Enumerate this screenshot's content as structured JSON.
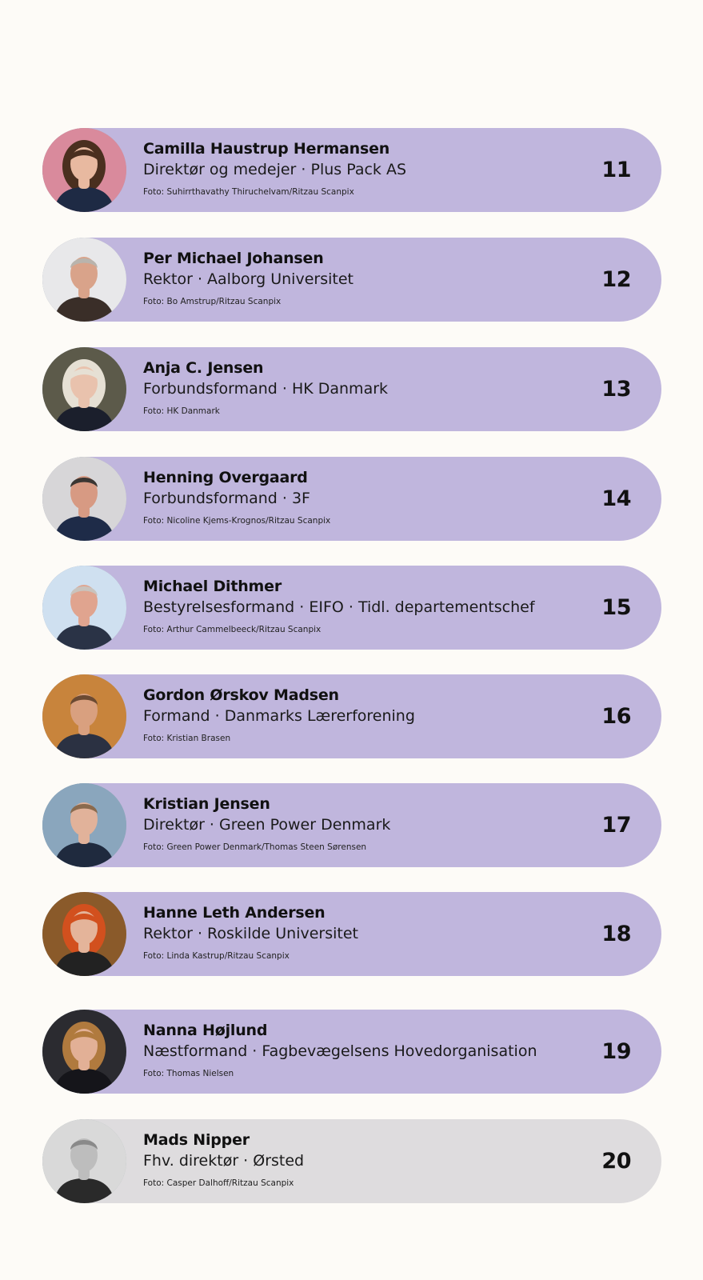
{
  "people": [
    {
      "rank": "11",
      "name": "Camilla Haustrup Hermansen",
      "role": "Direktør og medejer · Plus Pack AS",
      "credit": "Foto: Suhirrthavathy Thiruchelvam/Ritzau Scanpix",
      "avatar": "portrait-woman-icon",
      "photo_bg": "#d98a9c",
      "skin": "#e8b9a0",
      "hair": "#4a2f1f",
      "cloth": "#1e2a44"
    },
    {
      "rank": "12",
      "name": "Per Michael Johansen",
      "role": "Rektor · Aalborg Universitet",
      "credit": "Foto: Bo Amstrup/Ritzau Scanpix",
      "avatar": "portrait-man-icon",
      "photo_bg": "#e8e8ea",
      "skin": "#d9a38a",
      "hair": "#b9b4ad",
      "cloth": "#3a2e28"
    },
    {
      "rank": "13",
      "name": "Anja C. Jensen",
      "role": "Forbundsformand · HK Danmark",
      "credit": "Foto: HK Danmark",
      "avatar": "portrait-woman-icon",
      "photo_bg": "#5c5a4a",
      "skin": "#e9c2ad",
      "hair": "#e6e0d4",
      "cloth": "#1b1f2c"
    },
    {
      "rank": "14",
      "name": "Henning Overgaard",
      "role": "Forbundsformand · 3F",
      "credit": "Foto: Nicoline Kjems-Krognos/Ritzau Scanpix",
      "avatar": "portrait-man-icon",
      "photo_bg": "#d7d6d8",
      "skin": "#d79a83",
      "hair": "#3a3633",
      "cloth": "#1e2b48"
    },
    {
      "rank": "15",
      "name": "Michael Dithmer",
      "role": "Bestyrelsesformand · EIFO ·  Tidl. departementschef",
      "credit": "Foto: Arthur Cammelbeeck/Ritzau Scanpix",
      "avatar": "portrait-man-icon",
      "photo_bg": "#cfe0f0",
      "skin": "#e0a48f",
      "hair": "#c9c3bd",
      "cloth": "#2a3346"
    },
    {
      "rank": "16",
      "name": "Gordon Ørskov Madsen",
      "role": "Formand · Danmarks Lærerforening",
      "credit": "Foto: Kristian Brasen",
      "avatar": "portrait-man-icon",
      "photo_bg": "#c8843c",
      "skin": "#d9a07f",
      "hair": "#6b4a32",
      "cloth": "#2b3142"
    },
    {
      "rank": "17",
      "name": "Kristian Jensen",
      "role": "Direktør · Green Power Denmark",
      "credit": "Foto: Green Power Denmark/Thomas Steen Sørensen",
      "avatar": "portrait-man-icon",
      "photo_bg": "#8aa6bd",
      "skin": "#e1b29a",
      "hair": "#8a6a4e",
      "cloth": "#1f2a3e"
    },
    {
      "rank": "18",
      "name": "Hanne Leth Andersen",
      "role": "Rektor · Roskilde Universitet",
      "credit": "Foto: Linda Kastrup/Ritzau Scanpix",
      "avatar": "portrait-woman-icon",
      "photo_bg": "#8a5a2a",
      "skin": "#e4b49a",
      "hair": "#d2501e",
      "cloth": "#222222"
    },
    {
      "rank": "19",
      "name": "Nanna Højlund",
      "role": "Næstformand · Fagbevægelsens Hovedorganisation",
      "credit": "Foto: Thomas Nielsen",
      "avatar": "portrait-woman-icon",
      "photo_bg": "#2b2b30",
      "skin": "#e2b096",
      "hair": "#b07a3e",
      "cloth": "#15151a"
    },
    {
      "rank": "20",
      "name": "Mads Nipper",
      "role": "Fhv. direktør · Ørsted",
      "credit": "Foto: Casper Dalhoff/Ritzau Scanpix",
      "avatar": "portrait-man-icon",
      "photo_bg": "#d9d9d9",
      "skin": "#bdbdbd",
      "hair": "#8a8a8a",
      "cloth": "#2a2a2a"
    }
  ],
  "colors": {
    "page_bg": "#fdfbf7",
    "card_highlight": "#c0b6dd",
    "card_muted": "#dedcde",
    "text": "#111111"
  }
}
